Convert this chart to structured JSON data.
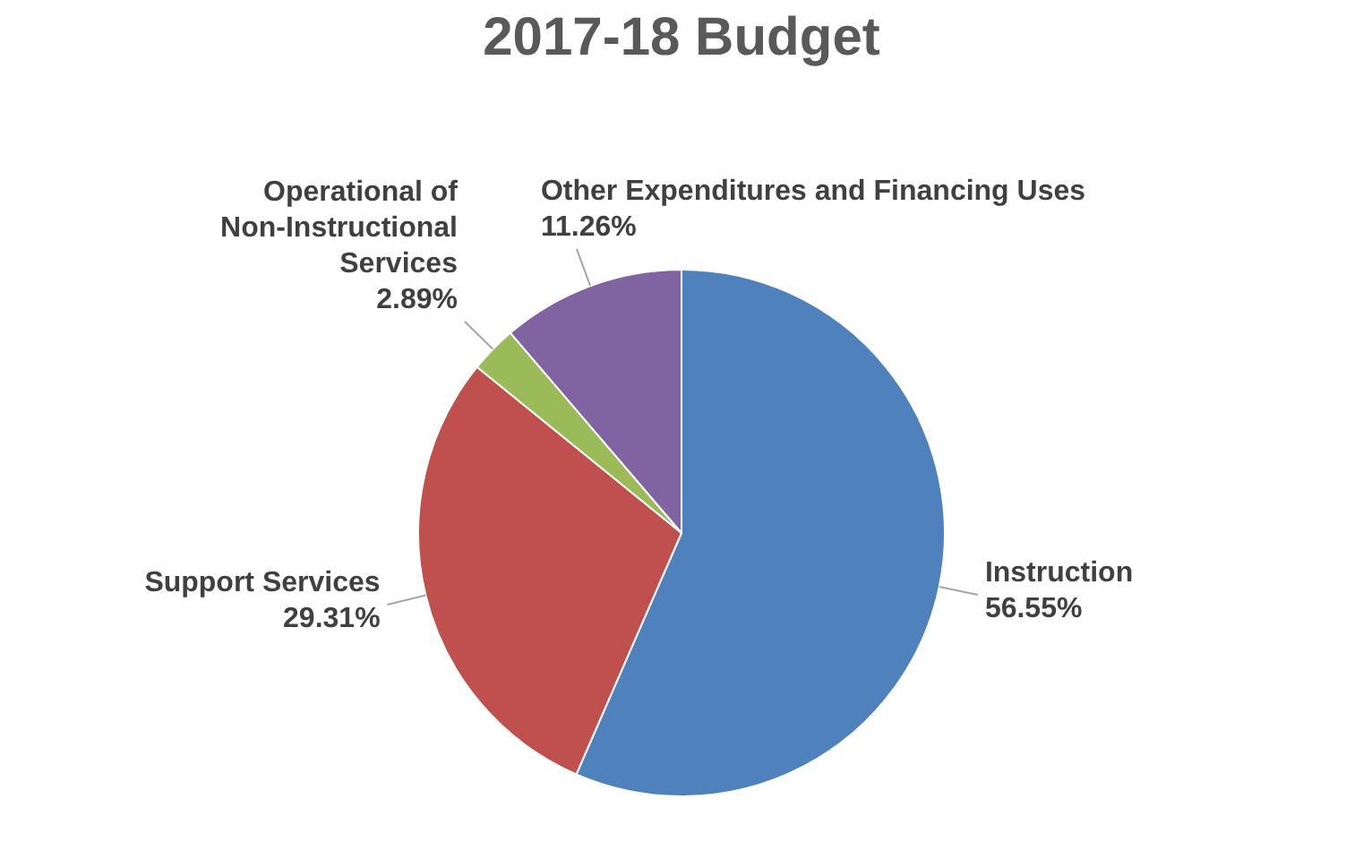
{
  "chart_data": {
    "type": "pie",
    "title": "2017-18 Budget",
    "categories": [
      "Instruction",
      "Support Services",
      "Operational of Non-Instructional Services",
      "Other Expenditures and Financing Uses"
    ],
    "values": [
      56.55,
      29.31,
      2.89,
      11.26
    ],
    "value_labels": [
      "56.55%",
      "29.31%",
      "2.89%",
      "11.26%"
    ],
    "colors": [
      "#4f81bd",
      "#c0504d",
      "#9bbb59",
      "#8064a2"
    ],
    "legend": false
  }
}
